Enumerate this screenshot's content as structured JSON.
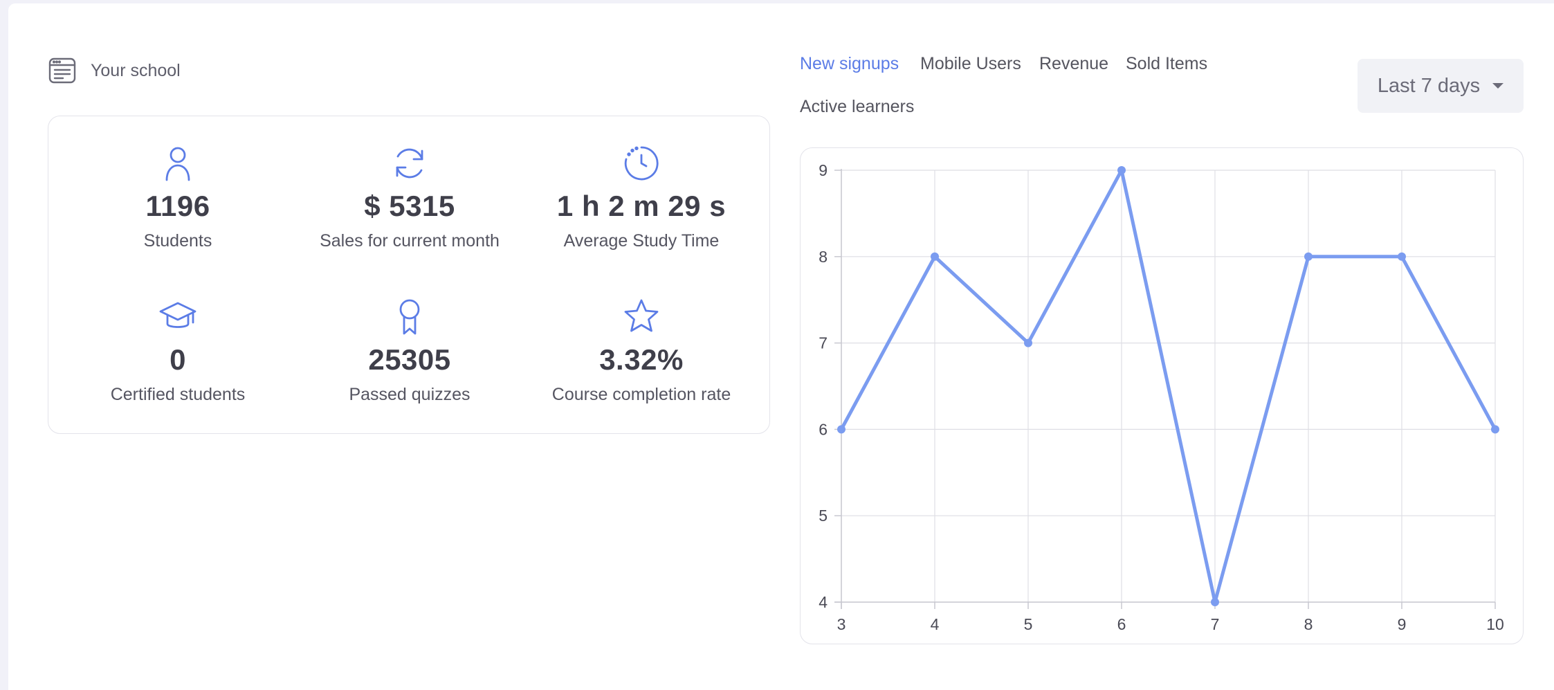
{
  "school": {
    "title": "Your school",
    "icon": "school-browser-icon"
  },
  "stats": [
    {
      "value": "1196",
      "label": "Students",
      "icon": "user-icon"
    },
    {
      "value": "$ 5315",
      "label": "Sales for current month",
      "icon": "refresh-icon"
    },
    {
      "value": "1 h 2 m 29 s",
      "label": "Average Study Time",
      "icon": "clock-icon"
    },
    {
      "value": "0",
      "label": "Certified students",
      "icon": "graduation-cap-icon"
    },
    {
      "value": "25305",
      "label": "Passed quizzes",
      "icon": "award-ribbon-icon"
    },
    {
      "value": "3.32%",
      "label": "Course completion rate",
      "icon": "star-icon"
    }
  ],
  "tabs": [
    {
      "label": "New signups",
      "active": true
    },
    {
      "label": "Mobile Users",
      "active": false
    },
    {
      "label": "Revenue",
      "active": false
    },
    {
      "label": "Sold Items",
      "active": false
    },
    {
      "label": "Active learners",
      "active": false
    }
  ],
  "range_select": {
    "label": "Last 7 days"
  },
  "colors": {
    "accent": "#5b7ce6",
    "line": "#7b9cf0",
    "text": "#3f3f4a"
  },
  "chart_data": {
    "type": "line",
    "x": [
      3,
      4,
      5,
      6,
      7,
      8,
      9,
      10
    ],
    "series": [
      {
        "values": [
          6,
          8,
          7,
          9,
          4,
          8,
          8,
          6
        ]
      }
    ],
    "xlim": [
      3,
      10
    ],
    "ylim": [
      4,
      9
    ],
    "yticks": [
      4,
      5,
      6,
      7,
      8,
      9
    ],
    "xticks": [
      3,
      4,
      5,
      6,
      7,
      8,
      9,
      10
    ],
    "grid": true,
    "title": "",
    "xlabel": "",
    "ylabel": ""
  }
}
